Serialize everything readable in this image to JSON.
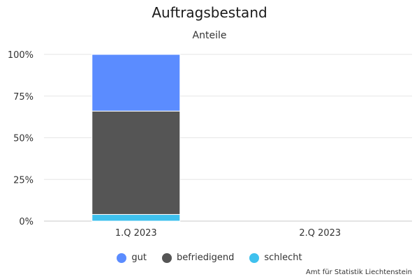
{
  "chart_data": {
    "type": "bar",
    "stacked": true,
    "title": "Auftragsbestand",
    "subtitle": "Anteile",
    "categories": [
      "1.Q 2023",
      "2.Q 2023"
    ],
    "series": [
      {
        "name": "gut",
        "color": "#5b8cff",
        "values": [
          34,
          null
        ]
      },
      {
        "name": "befriedigend",
        "color": "#555555",
        "values": [
          62,
          null
        ]
      },
      {
        "name": "schlecht",
        "color": "#3fc1ee",
        "values": [
          4,
          null
        ]
      }
    ],
    "yticks": [
      "0%",
      "25%",
      "50%",
      "75%",
      "100%"
    ],
    "ylim": [
      0,
      100
    ],
    "grid": true,
    "legend_position": "bottom"
  },
  "credit": "Amt für Statistik Liechtenstein"
}
